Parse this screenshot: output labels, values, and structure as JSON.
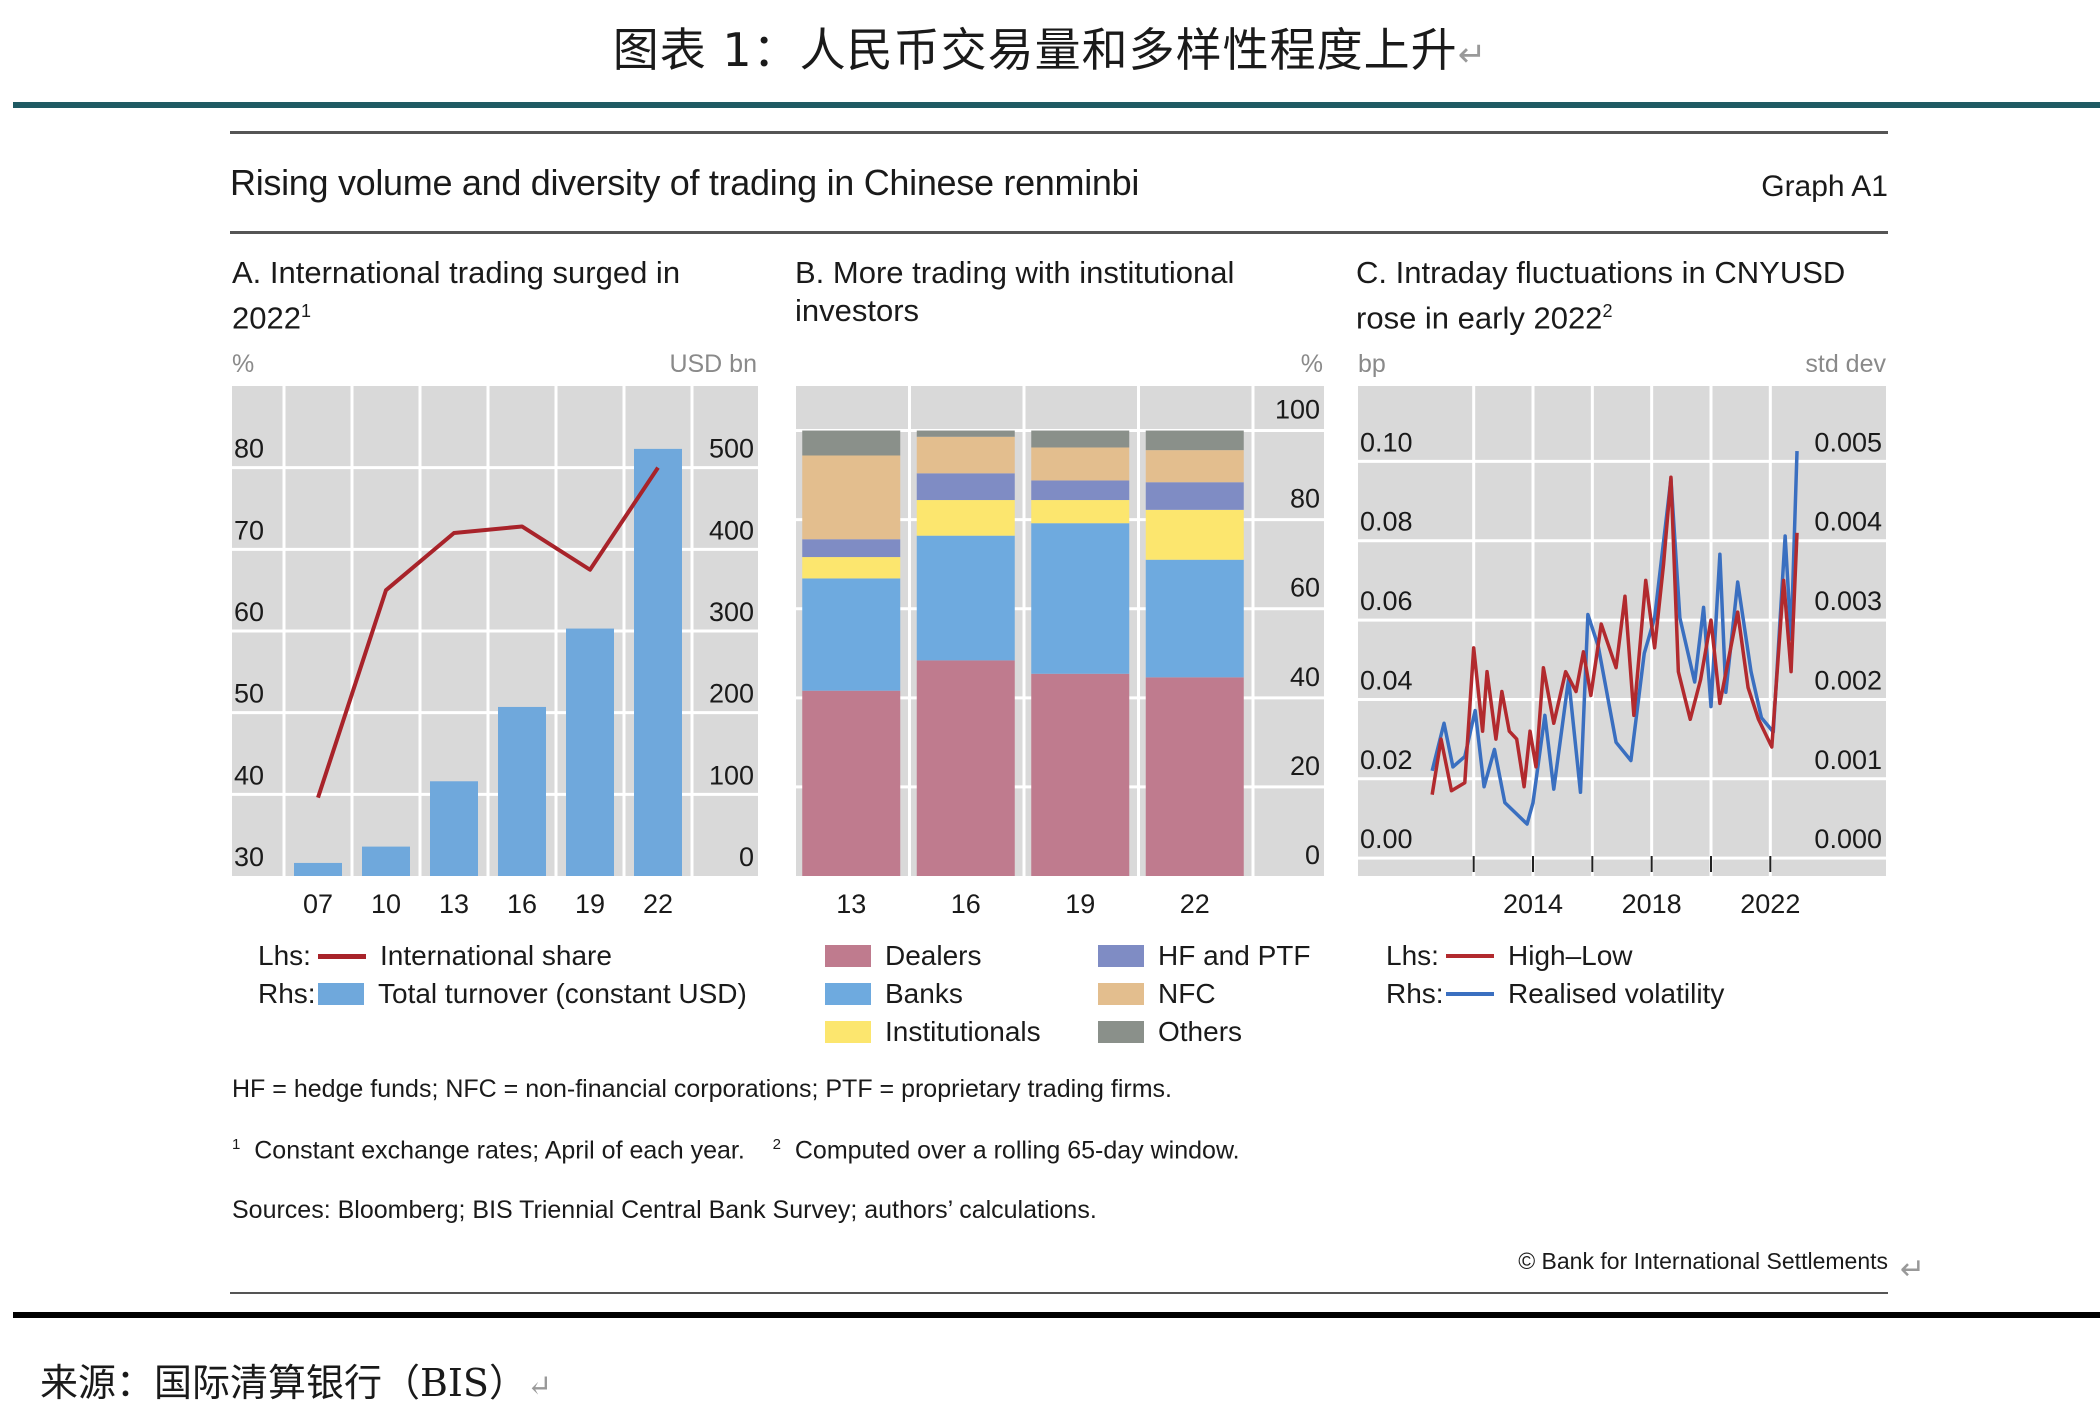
{
  "header": {
    "cn_title": "图表 1：人民币交易量和多样性程度上升",
    "return_mark": "↵",
    "graph_title": "Rising volume and diversity of trading in Chinese renminbi",
    "graph_id": "Graph A1"
  },
  "colors": {
    "teal_rule": "#1f5a63",
    "plot_bg": "#d9d9d9",
    "grid": "#ffffff"
  },
  "panels": {
    "a": {
      "title": "A. International trading surged in 2022",
      "title_sup": "1",
      "unit_left": "%",
      "unit_right": "USD bn",
      "legend": [
        {
          "prefix": "Lhs:",
          "label": "International share",
          "color": "#a8232a",
          "kind": "line"
        },
        {
          "prefix": "Rhs:",
          "label": "Total turnover (constant USD)",
          "color": "#6fa8dc",
          "kind": "box"
        }
      ]
    },
    "b": {
      "title": "B. More trading with institutional investors",
      "unit_right": "%",
      "legend": [
        {
          "label": "Dealers",
          "color": "#bf7b8e"
        },
        {
          "label": "HF and PTF",
          "color": "#7f8cc4"
        },
        {
          "label": "Banks",
          "color": "#6eaadf"
        },
        {
          "label": "NFC",
          "color": "#e3be8e"
        },
        {
          "label": "Institutionals",
          "color": "#fce66e"
        },
        {
          "label": "Others",
          "color": "#8a908a"
        }
      ]
    },
    "c": {
      "title": "C. Intraday fluctuations in CNYUSD rose in early 2022",
      "title_sup": "2",
      "unit_left": "bp",
      "unit_right": "std dev",
      "legend": [
        {
          "prefix": "Lhs:",
          "label": "High–Low",
          "color": "#b22a2e",
          "kind": "line"
        },
        {
          "prefix": "Rhs:",
          "label": "Realised volatility",
          "color": "#3a6fc0",
          "kind": "line"
        }
      ]
    }
  },
  "chart_data": [
    {
      "type": "bar",
      "categories": [
        "07",
        "10",
        "13",
        "16",
        "19",
        "22"
      ],
      "series": [
        {
          "name": "Total turnover (constant USD)",
          "axis": "right",
          "type": "bar",
          "values": [
            16,
            36,
            116,
            207,
            303,
            523
          ]
        },
        {
          "name": "International share",
          "axis": "left",
          "type": "line",
          "values": [
            39.6,
            65,
            72,
            72.8,
            67.5,
            80
          ]
        }
      ],
      "ylim_left": [
        30,
        90
      ],
      "yticks_left": [
        30,
        40,
        50,
        60,
        70,
        80
      ],
      "ylim_right": [
        0,
        600
      ],
      "yticks_right": [
        0,
        100,
        200,
        300,
        400,
        500
      ],
      "ylabel_left": "%",
      "ylabel_right": "USD bn",
      "grid": true
    },
    {
      "type": "bar",
      "stacked": true,
      "categories": [
        "13",
        "16",
        "19",
        "22"
      ],
      "series": [
        {
          "name": "Dealers",
          "values": [
            41.6,
            48.4,
            45.4,
            44.6
          ]
        },
        {
          "name": "Banks",
          "values": [
            25.2,
            28.0,
            33.8,
            26.4
          ]
        },
        {
          "name": "Institutionals",
          "values": [
            4.8,
            8.0,
            5.2,
            11.2
          ]
        },
        {
          "name": "HF and PTF",
          "values": [
            4.0,
            6.0,
            4.4,
            6.2
          ]
        },
        {
          "name": "NFC",
          "values": [
            18.8,
            8.2,
            7.4,
            7.2
          ]
        },
        {
          "name": "Others",
          "values": [
            5.6,
            1.4,
            3.8,
            4.4
          ]
        }
      ],
      "ylim": [
        0,
        110
      ],
      "yticks": [
        0,
        20,
        40,
        60,
        80,
        100
      ],
      "ylabel": "%",
      "grid": true
    },
    {
      "type": "line",
      "xticks": [
        2014,
        2018,
        2022
      ],
      "xlim": [
        2008.1,
        2025.9
      ],
      "ylim_left": [
        -0.0045,
        0.119
      ],
      "yticks_left": [
        "0.00",
        "0.02",
        "0.04",
        "0.06",
        "0.08",
        "0.10"
      ],
      "ylim_right": [
        -0.000225,
        0.00595
      ],
      "yticks_right": [
        "0.000",
        "0.001",
        "0.002",
        "0.003",
        "0.004",
        "0.005"
      ],
      "ylabel_left": "bp",
      "ylabel_right": "std dev",
      "grid": true,
      "series": [
        {
          "name": "High–Low",
          "axis": "left",
          "x": [
            2010.6,
            2010.9,
            2011.25,
            2011.7,
            2012.0,
            2012.3,
            2012.45,
            2012.75,
            2012.95,
            2013.2,
            2013.45,
            2013.7,
            2013.9,
            2014.1,
            2014.35,
            2014.7,
            2015.1,
            2015.45,
            2015.7,
            2015.95,
            2016.3,
            2016.8,
            2017.1,
            2017.4,
            2017.8,
            2018.1,
            2018.4,
            2018.65,
            2018.9,
            2019.3,
            2019.65,
            2020.0,
            2020.3,
            2020.9,
            2021.25,
            2021.6,
            2022.05,
            2022.45,
            2022.7,
            2022.9
          ],
          "y": [
            0.016,
            0.03,
            0.017,
            0.019,
            0.053,
            0.032,
            0.047,
            0.03,
            0.042,
            0.032,
            0.03,
            0.018,
            0.032,
            0.023,
            0.048,
            0.034,
            0.047,
            0.042,
            0.052,
            0.041,
            0.059,
            0.048,
            0.066,
            0.036,
            0.07,
            0.053,
            0.074,
            0.096,
            0.047,
            0.035,
            0.045,
            0.06,
            0.039,
            0.062,
            0.043,
            0.035,
            0.028,
            0.07,
            0.047,
            0.082
          ]
        },
        {
          "name": "Realised volatility",
          "axis": "right",
          "x": [
            2010.6,
            2011.0,
            2011.3,
            2011.7,
            2012.05,
            2012.35,
            2012.7,
            2013.05,
            2013.8,
            2014.0,
            2014.4,
            2014.7,
            2015.2,
            2015.6,
            2015.85,
            2016.2,
            2016.8,
            2017.3,
            2017.75,
            2018.1,
            2018.65,
            2018.95,
            2019.45,
            2019.75,
            2020.0,
            2020.3,
            2020.5,
            2020.9,
            2021.35,
            2021.7,
            2022.1,
            2022.5,
            2022.7,
            2022.9
          ],
          "y": [
            0.0011,
            0.0017,
            0.00115,
            0.00128,
            0.00186,
            0.0009,
            0.00137,
            0.0007,
            0.00043,
            0.0007,
            0.0018,
            0.00087,
            0.00226,
            0.00083,
            0.00307,
            0.00267,
            0.00146,
            0.00123,
            0.00258,
            0.00303,
            0.00478,
            0.00303,
            0.00222,
            0.00316,
            0.00191,
            0.00383,
            0.00209,
            0.00348,
            0.00235,
            0.00177,
            0.00159,
            0.00406,
            0.00276,
            0.00513
          ]
        }
      ]
    }
  ],
  "notes": {
    "abbrev": "HF = hedge funds; NFC = non-financial corporations; PTF = proprietary trading firms.",
    "fn1_mark": "1",
    "fn1": "Constant exchange rates; April of each year.",
    "fn2_mark": "2",
    "fn2": "Computed over a rolling 65-day window.",
    "sources": "Sources: Bloomberg; BIS Triennial Central Bank Survey; authors’ calculations.",
    "copyright": "© Bank for International Settlements"
  },
  "footer": {
    "source_cn": "来源：国际清算银行（BIS）"
  }
}
